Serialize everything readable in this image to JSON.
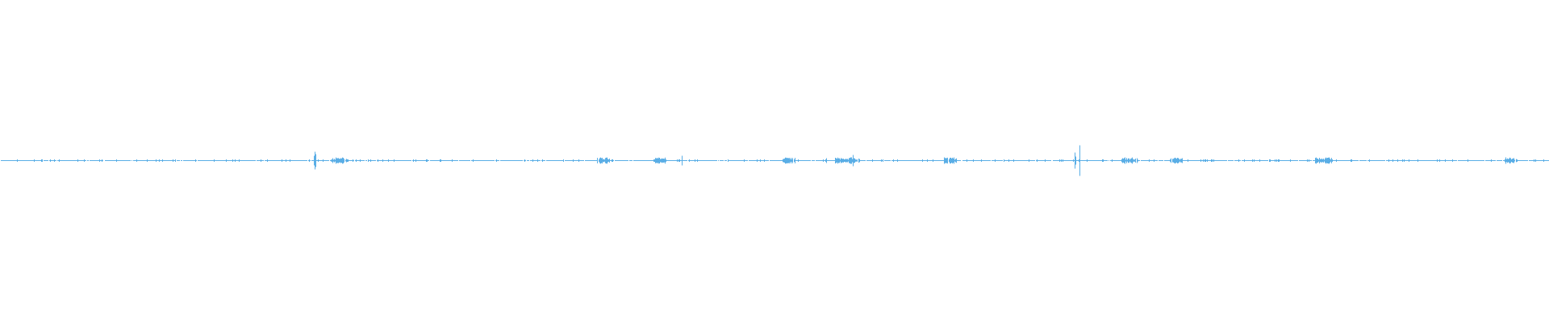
{
  "waveform": {
    "color": "#5aaee6",
    "background": "#ffffff"
  }
}
